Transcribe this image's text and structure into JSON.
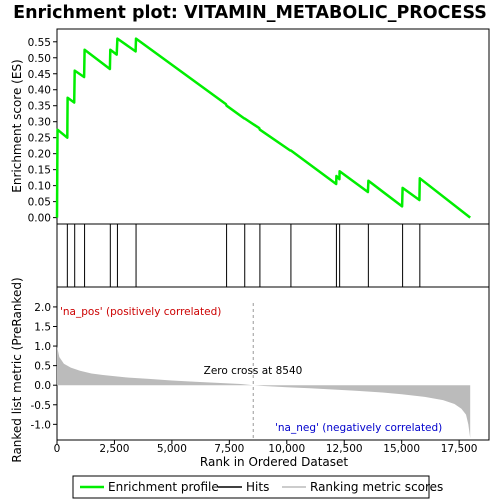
{
  "chart_data": {
    "type": "line",
    "title": "Enrichment plot: VITAMIN_METABOLIC_PROCESS",
    "xlabel": "Rank in Ordered Dataset",
    "panels": {
      "enrichment": {
        "ylabel": "Enrichment score (ES)",
        "ylim": [
          -0.02,
          0.59
        ],
        "yticks": [
          "0.00",
          "0.05",
          "0.10",
          "0.15",
          "0.20",
          "0.25",
          "0.30",
          "0.35",
          "0.40",
          "0.45",
          "0.50",
          "0.55"
        ],
        "series": [
          {
            "name": "Enrichment profile",
            "color": "#00ee00",
            "x": [
              0,
              20,
              450,
              460,
              750,
              770,
              1180,
              1200,
              2300,
              2320,
              2600,
              2630,
              3420,
              3440,
              7350,
              7380,
              8150,
              8170,
              8800,
              8830,
              10150,
              10180,
              12150,
              12160,
              12290,
              12300,
              13530,
              13550,
              15020,
              15040,
              15770,
              15790,
              17980
            ],
            "y": [
              0.0,
              0.275,
              0.25,
              0.375,
              0.36,
              0.46,
              0.44,
              0.525,
              0.465,
              0.525,
              0.51,
              0.56,
              0.52,
              0.56,
              0.355,
              0.35,
              0.31,
              0.31,
              0.28,
              0.275,
              0.21,
              0.21,
              0.105,
              0.13,
              0.12,
              0.145,
              0.08,
              0.115,
              0.035,
              0.093,
              0.055,
              0.123,
              0.0
            ]
          }
        ]
      },
      "hits": {
        "positions": [
          450,
          770,
          1200,
          2320,
          2630,
          3440,
          7380,
          8170,
          8830,
          10180,
          12160,
          12300,
          13550,
          15040,
          15790
        ]
      },
      "ranking": {
        "ylabel": "Ranked list metric (PreRanked)",
        "ylim": [
          -1.4,
          2.1
        ],
        "yticks": [
          "-1.0",
          "-0.5",
          "0.0",
          "0.5",
          "1.0",
          "1.5",
          "2.0"
        ],
        "series_name": "Ranking metric scores",
        "profile": {
          "x": [
            0,
            100,
            300,
            600,
            1000,
            1500,
            2000,
            3000,
            4000,
            5000,
            6000,
            7000,
            8000,
            8540,
            9000,
            10000,
            11000,
            12000,
            13000,
            14000,
            15000,
            16000,
            16800,
            17300,
            17600,
            17800,
            17900,
            17980
          ],
          "y": [
            1.0,
            0.72,
            0.55,
            0.45,
            0.37,
            0.3,
            0.26,
            0.2,
            0.16,
            0.12,
            0.09,
            0.06,
            0.03,
            0.0,
            -0.02,
            -0.05,
            -0.08,
            -0.11,
            -0.14,
            -0.18,
            -0.23,
            -0.3,
            -0.38,
            -0.48,
            -0.6,
            -0.75,
            -1.0,
            -1.35
          ]
        },
        "zero_cross_label": "Zero cross at 8540",
        "pos_label": "'na_pos' (positively correlated)",
        "neg_label": "'na_neg' (negatively correlated)",
        "zero_cross": 8540
      }
    },
    "x": {
      "min": 0,
      "max": 18800,
      "ticks": [
        "0",
        "2,500",
        "5,000",
        "7,500",
        "10,000",
        "12,500",
        "15,000",
        "17,500"
      ],
      "tick_values": [
        0,
        2500,
        5000,
        7500,
        10000,
        12500,
        15000,
        17500
      ]
    },
    "color_bar": {
      "segments": [
        {
          "end": 900,
          "color": "#e8303a"
        },
        {
          "end": 2400,
          "color": "#ee5560"
        },
        {
          "end": 4500,
          "color": "#f46e76"
        },
        {
          "end": 6400,
          "color": "#f99a9e"
        },
        {
          "end": 7500,
          "color": "#fcc8d8"
        },
        {
          "end": 8540,
          "color": "#fde0ec"
        },
        {
          "end": 9300,
          "color": "#eeeefc"
        },
        {
          "end": 10800,
          "color": "#dcdcfa"
        },
        {
          "end": 12500,
          "color": "#c6c6f8"
        },
        {
          "end": 14100,
          "color": "#8e8eee"
        },
        {
          "end": 15600,
          "color": "#6a6ae6"
        },
        {
          "end": 16900,
          "color": "#4a4add"
        },
        {
          "end": 17980,
          "color": "#2a16c8"
        }
      ]
    },
    "legend": {
      "items": [
        {
          "label": "Enrichment profile",
          "color": "#00ee00"
        },
        {
          "label": "Hits",
          "color": "#000000"
        },
        {
          "label": "Ranking metric scores",
          "color": "#bbbbbb"
        }
      ]
    }
  }
}
